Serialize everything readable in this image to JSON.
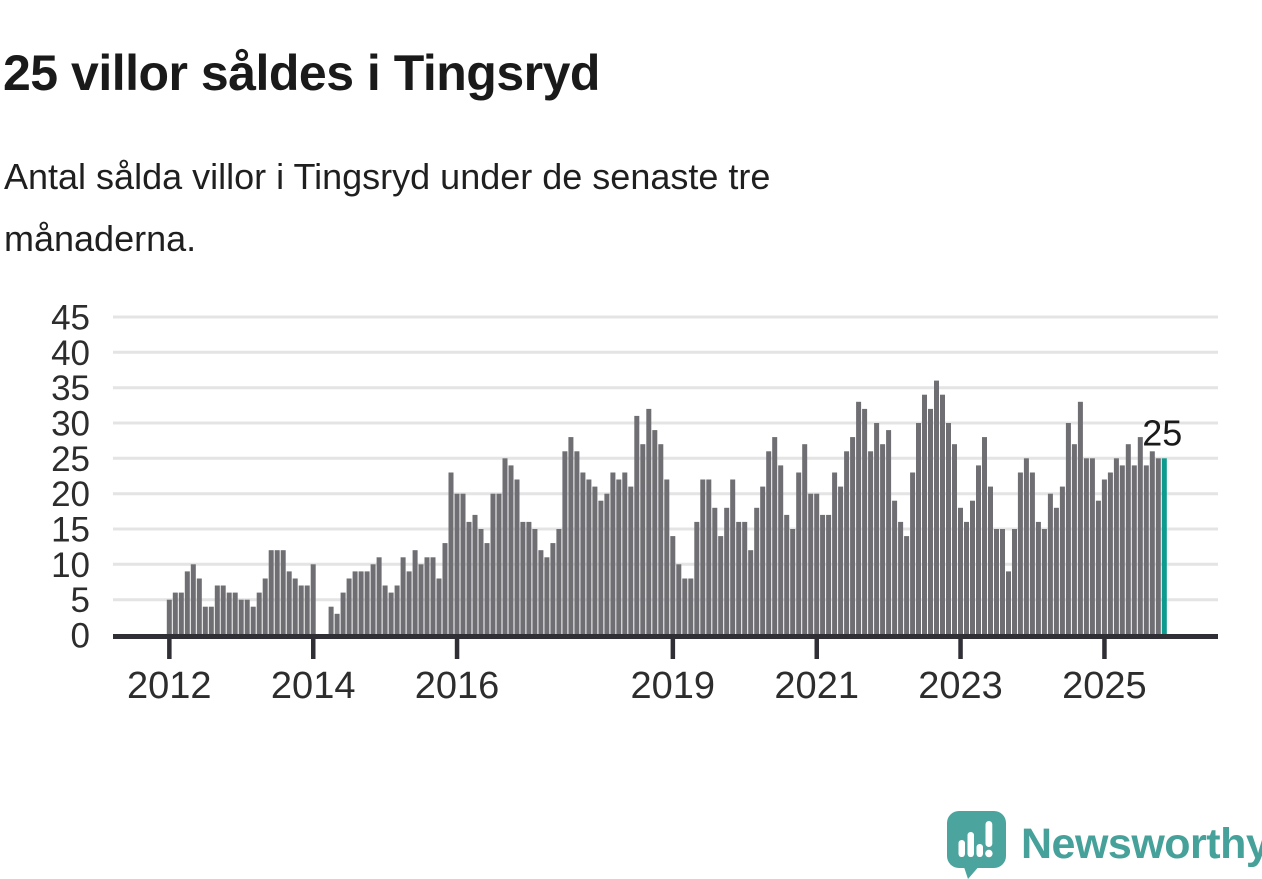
{
  "header": {
    "title": "25 villor såldes i Tingsryd",
    "subtitle_line1": "Antal sålda villor i Tingsryd under de senaste tre",
    "subtitle_line2": "månaderna."
  },
  "chart_data": {
    "type": "bar",
    "title": "25 villor såldes i Tingsryd",
    "description": "Antal sålda villor i Tingsryd under de senaste tre månaderna.",
    "frequency": "monthly",
    "x_start": "2012-01",
    "x_end": "2025-11",
    "values": [
      5,
      6,
      6,
      9,
      10,
      8,
      4,
      4,
      7,
      7,
      6,
      6,
      5,
      5,
      4,
      6,
      8,
      12,
      12,
      12,
      9,
      8,
      7,
      7,
      10,
      0,
      0,
      4,
      3,
      6,
      8,
      9,
      9,
      9,
      10,
      11,
      7,
      6,
      7,
      11,
      9,
      12,
      10,
      11,
      11,
      8,
      13,
      23,
      20,
      20,
      16,
      17,
      15,
      13,
      20,
      20,
      25,
      24,
      22,
      16,
      16,
      15,
      12,
      11,
      13,
      15,
      26,
      28,
      26,
      23,
      22,
      21,
      19,
      20,
      23,
      22,
      23,
      21,
      31,
      27,
      32,
      29,
      27,
      22,
      14,
      10,
      8,
      8,
      16,
      22,
      22,
      18,
      14,
      18,
      22,
      16,
      16,
      12,
      18,
      21,
      26,
      28,
      24,
      17,
      15,
      23,
      27,
      20,
      20,
      17,
      17,
      23,
      21,
      26,
      28,
      33,
      32,
      26,
      30,
      27,
      29,
      19,
      16,
      14,
      23,
      30,
      34,
      32,
      36,
      34,
      30,
      27,
      18,
      16,
      19,
      24,
      28,
      21,
      15,
      15,
      9,
      15,
      23,
      25,
      23,
      16,
      15,
      20,
      18,
      21,
      30,
      27,
      33,
      25,
      25,
      19,
      22,
      23,
      25,
      24,
      27,
      24,
      28,
      24,
      26,
      25,
      25
    ],
    "highlight_index": 166,
    "highlight_label": "25",
    "x_tick_labels": [
      "2012",
      "2014",
      "2016",
      "2019",
      "2021",
      "2023",
      "2025"
    ],
    "x_tick_month_index": [
      0,
      24,
      48,
      84,
      108,
      132,
      156
    ],
    "y_ticks": [
      0,
      5,
      10,
      15,
      20,
      25,
      30,
      35,
      40,
      45
    ],
    "ylim": [
      0,
      45
    ],
    "grid": "horizontal",
    "legend": "none",
    "colors": {
      "bar": "#6e6e73",
      "highlight": "#0d9a8f",
      "gridline": "#e4e4e4",
      "axis": "#312f36",
      "tick_text": "#2d2d2d",
      "annotation_text": "#1a1a1a"
    }
  },
  "footer": {
    "brand": "Newsworthy",
    "brand_color": "#46a19b"
  }
}
